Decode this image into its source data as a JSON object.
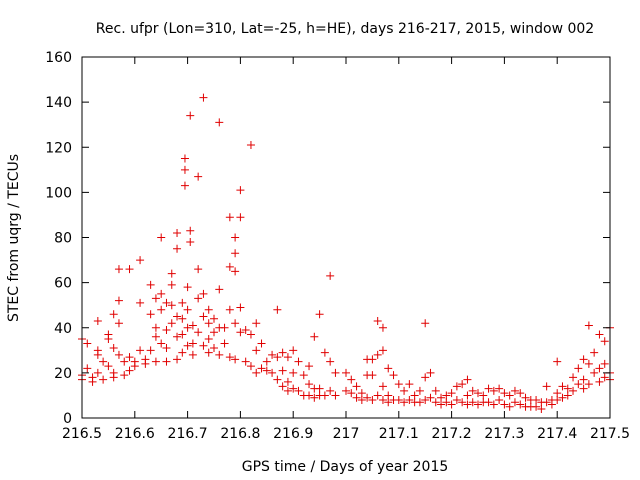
{
  "chart_data": {
    "type": "scatter",
    "title": "Rec. ufpr (Lon=310, Lat=-25, h=HE), days 216-217, 2015, window 002",
    "xlabel": "GPS time / Days of year 2015",
    "ylabel": "STEC from uqrg / TECUs",
    "xlim": [
      216.5,
      217.5
    ],
    "ylim": [
      0,
      160
    ],
    "x_ticks": [
      "216.5",
      "216.6",
      "216.7",
      "216.8",
      "216.9",
      "217",
      "217.1",
      "217.2",
      "217.3",
      "217.4",
      "217.5"
    ],
    "y_ticks": [
      "0",
      "20",
      "40",
      "60",
      "80",
      "100",
      "120",
      "140",
      "160"
    ],
    "grid": false,
    "marker": "plus",
    "color": "#e00000",
    "points": [
      [
        216.5,
        35
      ],
      [
        216.5,
        19
      ],
      [
        216.5,
        17
      ],
      [
        216.51,
        33
      ],
      [
        216.51,
        22
      ],
      [
        216.52,
        18
      ],
      [
        216.52,
        16
      ],
      [
        216.53,
        43
      ],
      [
        216.53,
        30
      ],
      [
        216.53,
        28
      ],
      [
        216.53,
        20
      ],
      [
        216.54,
        25
      ],
      [
        216.54,
        17
      ],
      [
        216.55,
        37
      ],
      [
        216.55,
        35
      ],
      [
        216.55,
        23
      ],
      [
        216.56,
        46
      ],
      [
        216.56,
        31
      ],
      [
        216.56,
        20
      ],
      [
        216.56,
        18
      ],
      [
        216.57,
        42
      ],
      [
        216.57,
        28
      ],
      [
        216.57,
        52
      ],
      [
        216.57,
        66
      ],
      [
        216.58,
        25
      ],
      [
        216.58,
        19
      ],
      [
        216.59,
        66
      ],
      [
        216.59,
        27
      ],
      [
        216.59,
        21
      ],
      [
        216.6,
        23
      ],
      [
        216.6,
        25
      ],
      [
        216.61,
        70
      ],
      [
        216.61,
        51
      ],
      [
        216.61,
        30
      ],
      [
        216.62,
        26
      ],
      [
        216.62,
        24
      ],
      [
        216.63,
        59
      ],
      [
        216.63,
        46
      ],
      [
        216.63,
        30
      ],
      [
        216.64,
        53
      ],
      [
        216.64,
        40
      ],
      [
        216.64,
        36
      ],
      [
        216.64,
        25
      ],
      [
        216.65,
        80
      ],
      [
        216.65,
        55
      ],
      [
        216.65,
        48
      ],
      [
        216.65,
        33
      ],
      [
        216.66,
        51
      ],
      [
        216.66,
        39
      ],
      [
        216.66,
        31
      ],
      [
        216.66,
        25
      ],
      [
        216.67,
        64
      ],
      [
        216.67,
        59
      ],
      [
        216.67,
        50
      ],
      [
        216.67,
        42
      ],
      [
        216.68,
        82
      ],
      [
        216.68,
        75
      ],
      [
        216.68,
        45
      ],
      [
        216.68,
        36
      ],
      [
        216.68,
        26
      ],
      [
        216.69,
        51
      ],
      [
        216.69,
        44
      ],
      [
        216.69,
        37
      ],
      [
        216.69,
        29
      ],
      [
        216.695,
        115
      ],
      [
        216.695,
        110
      ],
      [
        216.695,
        103
      ],
      [
        216.7,
        58
      ],
      [
        216.7,
        48
      ],
      [
        216.7,
        40
      ],
      [
        216.7,
        32
      ],
      [
        216.705,
        134
      ],
      [
        216.705,
        83
      ],
      [
        216.705,
        78
      ],
      [
        216.71,
        41
      ],
      [
        216.71,
        33
      ],
      [
        216.71,
        28
      ],
      [
        216.72,
        107
      ],
      [
        216.72,
        66
      ],
      [
        216.72,
        53
      ],
      [
        216.72,
        38
      ],
      [
        216.73,
        142
      ],
      [
        216.73,
        55
      ],
      [
        216.73,
        45
      ],
      [
        216.73,
        32
      ],
      [
        216.74,
        48
      ],
      [
        216.74,
        42
      ],
      [
        216.74,
        35
      ],
      [
        216.74,
        29
      ],
      [
        216.75,
        44
      ],
      [
        216.75,
        38
      ],
      [
        216.75,
        31
      ],
      [
        216.76,
        131
      ],
      [
        216.76,
        57
      ],
      [
        216.76,
        40
      ],
      [
        216.76,
        28
      ],
      [
        216.77,
        40
      ],
      [
        216.77,
        33
      ],
      [
        216.78,
        89
      ],
      [
        216.78,
        67
      ],
      [
        216.78,
        48
      ],
      [
        216.78,
        27
      ],
      [
        216.79,
        80
      ],
      [
        216.79,
        73
      ],
      [
        216.79,
        65
      ],
      [
        216.79,
        42
      ],
      [
        216.79,
        26
      ],
      [
        216.8,
        101
      ],
      [
        216.8,
        89
      ],
      [
        216.8,
        49
      ],
      [
        216.8,
        38
      ],
      [
        216.81,
        39
      ],
      [
        216.81,
        25
      ],
      [
        216.82,
        121
      ],
      [
        216.82,
        37
      ],
      [
        216.82,
        23
      ],
      [
        216.83,
        42
      ],
      [
        216.83,
        30
      ],
      [
        216.83,
        20
      ],
      [
        216.84,
        33
      ],
      [
        216.84,
        22
      ],
      [
        216.85,
        25
      ],
      [
        216.85,
        21
      ],
      [
        216.86,
        28
      ],
      [
        216.86,
        20
      ],
      [
        216.87,
        48
      ],
      [
        216.87,
        27
      ],
      [
        216.87,
        17
      ],
      [
        216.88,
        29
      ],
      [
        216.88,
        21
      ],
      [
        216.88,
        14
      ],
      [
        216.89,
        27
      ],
      [
        216.89,
        16
      ],
      [
        216.89,
        12
      ],
      [
        216.9,
        30
      ],
      [
        216.9,
        20
      ],
      [
        216.9,
        13
      ],
      [
        216.91,
        25
      ],
      [
        216.91,
        12
      ],
      [
        216.92,
        19
      ],
      [
        216.92,
        10
      ],
      [
        216.93,
        23
      ],
      [
        216.93,
        15
      ],
      [
        216.93,
        10
      ],
      [
        216.94,
        36
      ],
      [
        216.94,
        13
      ],
      [
        216.94,
        9
      ],
      [
        216.95,
        46
      ],
      [
        216.95,
        13
      ],
      [
        216.95,
        10
      ],
      [
        216.96,
        29
      ],
      [
        216.96,
        10
      ],
      [
        216.97,
        63
      ],
      [
        216.97,
        25
      ],
      [
        216.97,
        12
      ],
      [
        216.98,
        20
      ],
      [
        216.98,
        10
      ],
      [
        217.0,
        20
      ],
      [
        217.0,
        12
      ],
      [
        217.01,
        17
      ],
      [
        217.01,
        11
      ],
      [
        217.02,
        14
      ],
      [
        217.02,
        9
      ],
      [
        217.03,
        11
      ],
      [
        217.03,
        8
      ],
      [
        217.04,
        26
      ],
      [
        217.04,
        19
      ],
      [
        217.04,
        9
      ],
      [
        217.05,
        26
      ],
      [
        217.05,
        19
      ],
      [
        217.05,
        8
      ],
      [
        217.06,
        43
      ],
      [
        217.06,
        28
      ],
      [
        217.06,
        10
      ],
      [
        217.07,
        40
      ],
      [
        217.07,
        30
      ],
      [
        217.07,
        14
      ],
      [
        217.07,
        8
      ],
      [
        217.08,
        22
      ],
      [
        217.08,
        10
      ],
      [
        217.08,
        7
      ],
      [
        217.09,
        19
      ],
      [
        217.09,
        8
      ],
      [
        217.1,
        15
      ],
      [
        217.1,
        8
      ],
      [
        217.11,
        12
      ],
      [
        217.11,
        7
      ],
      [
        217.12,
        15
      ],
      [
        217.12,
        8
      ],
      [
        217.13,
        10
      ],
      [
        217.13,
        7
      ],
      [
        217.14,
        12
      ],
      [
        217.14,
        7
      ],
      [
        217.15,
        42
      ],
      [
        217.15,
        18
      ],
      [
        217.15,
        8
      ],
      [
        217.16,
        20
      ],
      [
        217.16,
        9
      ],
      [
        217.17,
        12
      ],
      [
        217.17,
        7
      ],
      [
        217.18,
        9
      ],
      [
        217.18,
        6
      ],
      [
        217.19,
        10
      ],
      [
        217.19,
        7
      ],
      [
        217.2,
        11
      ],
      [
        217.2,
        6
      ],
      [
        217.21,
        14
      ],
      [
        217.21,
        8
      ],
      [
        217.22,
        15
      ],
      [
        217.22,
        7
      ],
      [
        217.23,
        17
      ],
      [
        217.23,
        10
      ],
      [
        217.23,
        6
      ],
      [
        217.24,
        12
      ],
      [
        217.24,
        7
      ],
      [
        217.25,
        11
      ],
      [
        217.25,
        6
      ],
      [
        217.26,
        10
      ],
      [
        217.26,
        7
      ],
      [
        217.27,
        13
      ],
      [
        217.27,
        7
      ],
      [
        217.28,
        12
      ],
      [
        217.28,
        6
      ],
      [
        217.29,
        13
      ],
      [
        217.29,
        8
      ],
      [
        217.3,
        11
      ],
      [
        217.3,
        6
      ],
      [
        217.31,
        10
      ],
      [
        217.31,
        5
      ],
      [
        217.32,
        12
      ],
      [
        217.32,
        7
      ],
      [
        217.33,
        11
      ],
      [
        217.33,
        6
      ],
      [
        217.34,
        9
      ],
      [
        217.34,
        5
      ],
      [
        217.35,
        8
      ],
      [
        217.35,
        5
      ],
      [
        217.36,
        8
      ],
      [
        217.36,
        5
      ],
      [
        217.37,
        7
      ],
      [
        217.37,
        4
      ],
      [
        217.38,
        14
      ],
      [
        217.38,
        7
      ],
      [
        217.39,
        8
      ],
      [
        217.39,
        6
      ],
      [
        217.4,
        25
      ],
      [
        217.4,
        11
      ],
      [
        217.4,
        8
      ],
      [
        217.41,
        14
      ],
      [
        217.41,
        9
      ],
      [
        217.42,
        13
      ],
      [
        217.42,
        10
      ],
      [
        217.43,
        18
      ],
      [
        217.43,
        12
      ],
      [
        217.44,
        22
      ],
      [
        217.44,
        15
      ],
      [
        217.45,
        26
      ],
      [
        217.45,
        17
      ],
      [
        217.45,
        13
      ],
      [
        217.46,
        41
      ],
      [
        217.46,
        24
      ],
      [
        217.46,
        15
      ],
      [
        217.47,
        29
      ],
      [
        217.47,
        20
      ],
      [
        217.48,
        37
      ],
      [
        217.48,
        22
      ],
      [
        217.48,
        16
      ],
      [
        217.49,
        34
      ],
      [
        217.49,
        24
      ],
      [
        217.49,
        18
      ],
      [
        217.5,
        40
      ],
      [
        217.5,
        20
      ],
      [
        217.5,
        17
      ]
    ]
  }
}
